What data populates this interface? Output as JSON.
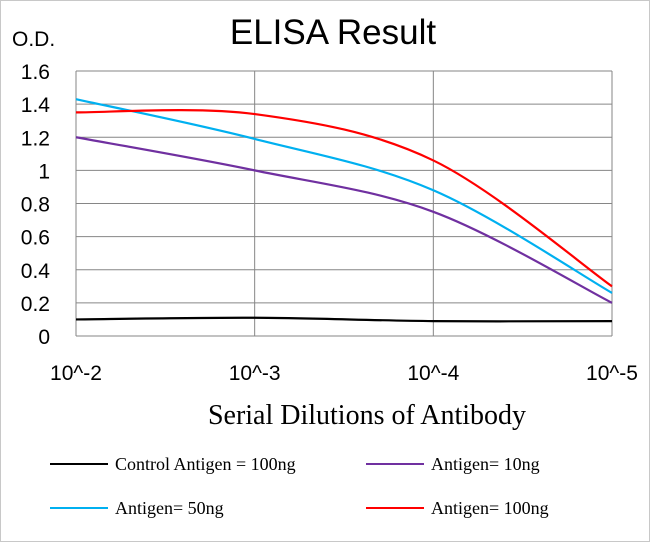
{
  "chart_data": {
    "type": "line",
    "title": "ELISA Result",
    "ylabel": "O.D.",
    "xlabel": "Serial Dilutions of Antibody",
    "categories": [
      "10^-2",
      "10^-3",
      "10^-4",
      "10^-5"
    ],
    "y_ticks": [
      "0",
      "0.2",
      "0.4",
      "0.6",
      "0.8",
      "1",
      "1.2",
      "1.4",
      "1.6"
    ],
    "ylim": [
      0,
      1.6
    ],
    "grid": true,
    "legend_position": "bottom",
    "series": [
      {
        "name": "Control Antigen = 100ng",
        "color": "#000000",
        "values": [
          0.1,
          0.11,
          0.09,
          0.09
        ]
      },
      {
        "name": "Antigen= 10ng",
        "color": "#7030a0",
        "values": [
          1.2,
          1.0,
          0.75,
          0.2
        ]
      },
      {
        "name": "Antigen= 50ng",
        "color": "#00b0f0",
        "values": [
          1.43,
          1.19,
          0.88,
          0.26
        ]
      },
      {
        "name": "Antigen= 100ng",
        "color": "#ff0000",
        "values": [
          1.35,
          1.34,
          1.06,
          0.3
        ]
      }
    ]
  }
}
